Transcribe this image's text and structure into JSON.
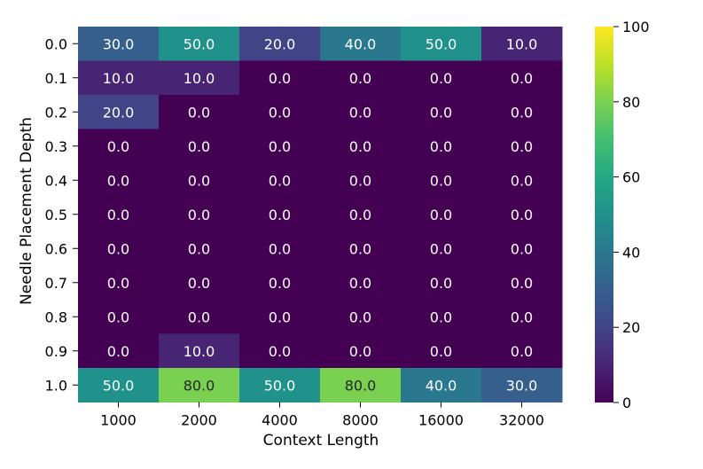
{
  "chart_data": {
    "type": "heatmap",
    "title": "",
    "xlabel": "Context Length",
    "ylabel": "Needle Placement Depth",
    "x_categories": [
      "1000",
      "2000",
      "4000",
      "8000",
      "16000",
      "32000"
    ],
    "y_categories": [
      "0.0",
      "0.1",
      "0.2",
      "0.3",
      "0.4",
      "0.5",
      "0.6",
      "0.7",
      "0.8",
      "0.9",
      "1.0"
    ],
    "values": [
      [
        30,
        50,
        20,
        40,
        50,
        10
      ],
      [
        10,
        10,
        0,
        0,
        0,
        0
      ],
      [
        20,
        0,
        0,
        0,
        0,
        0
      ],
      [
        0,
        0,
        0,
        0,
        0,
        0
      ],
      [
        0,
        0,
        0,
        0,
        0,
        0
      ],
      [
        0,
        0,
        0,
        0,
        0,
        0
      ],
      [
        0,
        0,
        0,
        0,
        0,
        0
      ],
      [
        0,
        0,
        0,
        0,
        0,
        0
      ],
      [
        0,
        0,
        0,
        0,
        0,
        0
      ],
      [
        0,
        10,
        0,
        0,
        0,
        0
      ],
      [
        50,
        80,
        50,
        80,
        40,
        30
      ]
    ],
    "value_format_decimals": 1,
    "colormap": "viridis",
    "vmin": 0,
    "vmax": 100,
    "colorbar_ticks": [
      0,
      20,
      40,
      60,
      80,
      100
    ],
    "annotation_colors": {
      "dark_cells": "#ffffff",
      "light_cells": "#262626"
    },
    "grid": false,
    "legend": "colorbar-right"
  }
}
